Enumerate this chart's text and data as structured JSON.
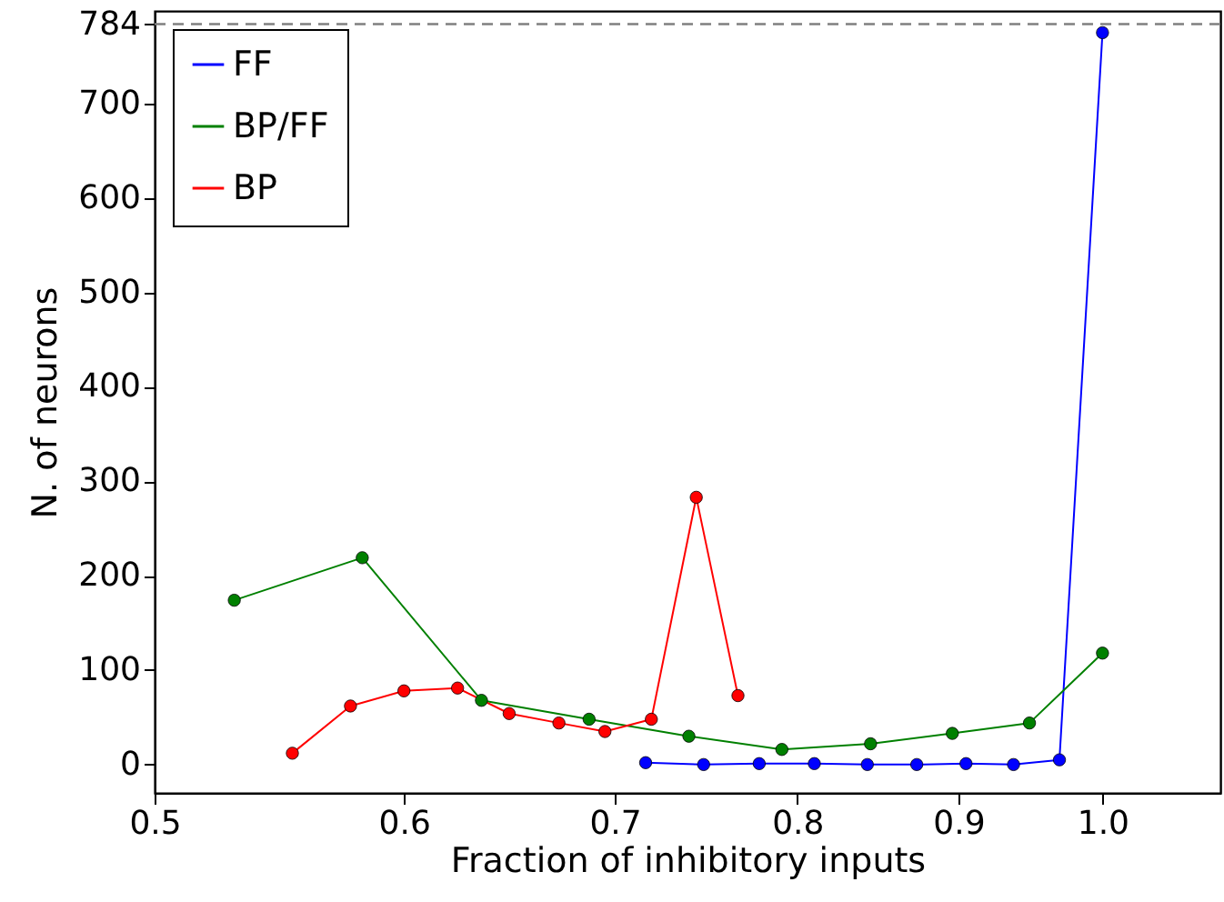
{
  "chart_data": {
    "type": "line",
    "xlabel": "Fraction of inhibitory inputs",
    "ylabel": "N. of neurons",
    "log": "x",
    "xlim": [
      0.5,
      1.09
    ],
    "ylim": [
      -30,
      798
    ],
    "xticks": [
      0.5,
      0.6,
      0.7,
      0.8,
      0.9,
      {
        "value": 1,
        "label": "1.0"
      }
    ],
    "yticks": [
      0,
      100,
      200,
      300,
      400,
      500,
      600,
      700,
      784
    ],
    "marker": "circle",
    "legend": "top left",
    "ref_lines": [
      {
        "axis": "y",
        "value": 784,
        "color": "#808080",
        "line_style": "dashed"
      }
    ],
    "series": [
      {
        "name": "FF",
        "color": "#0000ff",
        "x": [
          0.716,
          0.747,
          0.778,
          0.81,
          0.842,
          0.873,
          0.905,
          0.937,
          0.969,
          1.0
        ],
        "values": [
          2,
          0,
          1,
          1,
          0,
          0,
          1,
          0,
          5,
          775
        ]
      },
      {
        "name": "BP/FF",
        "color": "#008000",
        "x": [
          0.53,
          0.582,
          0.635,
          0.687,
          0.739,
          0.791,
          0.844,
          0.896,
          0.948,
          1.0
        ],
        "values": [
          174,
          219,
          68,
          48,
          30,
          16,
          22,
          33,
          44,
          118
        ]
      },
      {
        "name": "BP",
        "color": "#ff0000",
        "x": [
          0.553,
          0.577,
          0.6,
          0.624,
          0.648,
          0.672,
          0.695,
          0.719,
          0.743,
          0.766
        ],
        "values": [
          12,
          62,
          78,
          81,
          54,
          44,
          35,
          48,
          283,
          73
        ]
      }
    ]
  }
}
